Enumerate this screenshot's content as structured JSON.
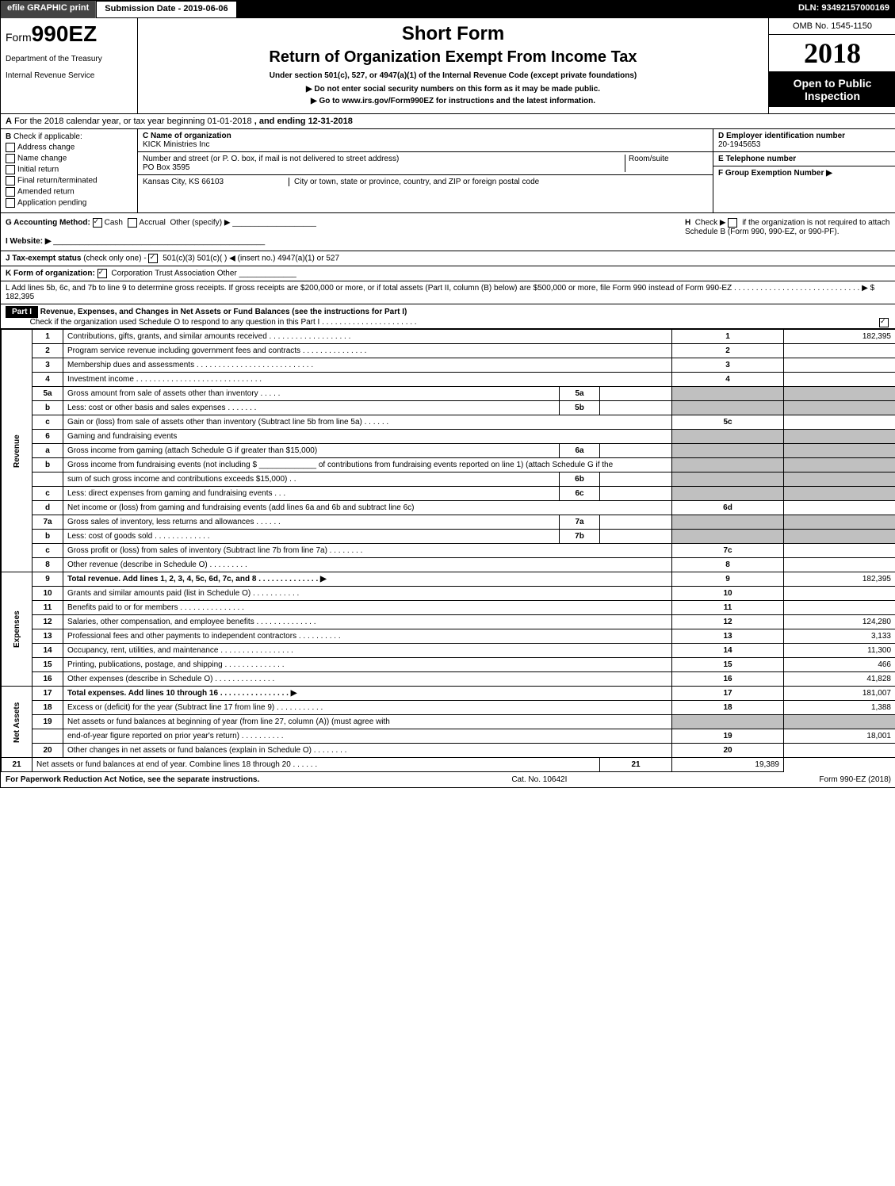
{
  "header": {
    "efile_label": "efile GRAPHIC print",
    "submission_label": "Submission Date - 2019-06-06",
    "dln": "DLN: 93492157000169"
  },
  "title": {
    "form_prefix": "Form",
    "form_number": "990EZ",
    "short_form": "Short Form",
    "return_of": "Return of Organization Exempt From Income Tax",
    "under_section": "Under section 501(c), 527, or 4947(a)(1) of the Internal Revenue Code (except private foundations)",
    "dept": "Department of the Treasury",
    "irs": "Internal Revenue Service",
    "do_not_enter": "▶ Do not enter social security numbers on this form as it may be made public.",
    "go_to": "▶ Go to www.irs.gov/Form990EZ for instructions and the latest information.",
    "omb": "OMB No. 1545-1150",
    "year": "2018",
    "open_public": "Open to Public Inspection"
  },
  "section_a": {
    "label_a": "A",
    "text": "For the 2018 calendar year, or tax year beginning 01-01-2018",
    "ending": ", and ending 12-31-2018"
  },
  "section_b": {
    "label": "B",
    "check_if": "Check if applicable:",
    "options": [
      "Address change",
      "Name change",
      "Initial return",
      "Final return/terminated",
      "Amended return",
      "Application pending"
    ]
  },
  "section_c": {
    "name_label": "C Name of organization",
    "name_value": "KICK Ministries Inc",
    "street_label": "Number and street (or P. O. box, if mail is not delivered to street address)",
    "street_value": "PO Box 3595",
    "room_label": "Room/suite",
    "city_state_hint": "City or town, state or province, country, and ZIP or foreign postal code",
    "city_value": "Kansas City, KS  66103"
  },
  "section_d": {
    "ein_label": "D Employer identification number",
    "ein_value": "20-1945653",
    "phone_label": "E Telephone number",
    "group_label": "F Group Exemption Number   ▶"
  },
  "section_g": {
    "accounting": "G Accounting Method:",
    "cash": "Cash",
    "accrual": "Accrual",
    "other": "Other (specify) ▶",
    "website": "I Website: ▶",
    "h_label": "H",
    "h_check": "Check ▶",
    "h_text": "if the organization is not required to attach Schedule B (Form 990, 990-EZ, or 990-PF)."
  },
  "section_j": {
    "label": "J Tax-exempt status",
    "hint": "(check only one) -",
    "opts": "501(c)(3)   501(c)(  ) ◀ (insert no.)   4947(a)(1) or   527"
  },
  "section_k": {
    "label": "K Form of organization:",
    "opts": "Corporation   Trust   Association   Other"
  },
  "section_l": {
    "text": "L Add lines 5b, 6c, and 7b to line 9 to determine gross receipts. If gross receipts are $200,000 or more, or if total assets (Part II, column (B) below) are $500,000 or more, file Form 990 instead of Form 990-EZ  . . . . . . . . . . . . . . . . . . . . . . . . . . . . .  ▶ $ 182,395"
  },
  "part1": {
    "header": "Part I",
    "title": "Revenue, Expenses, and Changes in Net Assets or Fund Balances (see the instructions for Part I)",
    "check_o": "Check if the organization used Schedule O to respond to any question in this Part I . . . . . . . . . . . . . . . . . . . . . ."
  },
  "sections": {
    "revenue": "Revenue",
    "expenses": "Expenses",
    "net_assets": "Net Assets"
  },
  "lines": [
    {
      "num": "1",
      "desc": "Contributions, gifts, grants, and similar amounts received  . . . . . . . . . . . . . . . . . . .",
      "box": "1",
      "val": "182,395"
    },
    {
      "num": "2",
      "desc": "Program service revenue including government fees and contracts  . . . . . . . . . . . . . . .",
      "box": "2",
      "val": ""
    },
    {
      "num": "3",
      "desc": "Membership dues and assessments  . . . . . . . . . . . . . . . . . . . . . . . . . . .",
      "box": "3",
      "val": ""
    },
    {
      "num": "4",
      "desc": "Investment income  . . . . . . . . . . . . . . . . . . . . . . . . . . . . .",
      "box": "4",
      "val": ""
    },
    {
      "num": "5a",
      "desc": "Gross amount from sale of assets other than inventory  . . . . .",
      "sub": "5a",
      "subval": ""
    },
    {
      "num": "b",
      "desc": "Less: cost or other basis and sales expenses  . . . . . . .",
      "sub": "5b",
      "subval": ""
    },
    {
      "num": "c",
      "desc": "Gain or (loss) from sale of assets other than inventory (Subtract line 5b from line 5a)          .  .  .  .  .  .",
      "box": "5c",
      "val": ""
    },
    {
      "num": "6",
      "desc": "Gaming and fundraising events"
    },
    {
      "num": "a",
      "desc": "Gross income from gaming (attach Schedule G if greater than $15,000)",
      "sub": "6a",
      "subval": ""
    },
    {
      "num": "b",
      "desc": "Gross income from fundraising events (not including $ _____________ of contributions from fundraising events reported on line 1) (attach Schedule G if the"
    },
    {
      "num": "",
      "desc": "sum of such gross income and contributions exceeds $15,000)      .  .",
      "sub": "6b",
      "subval": ""
    },
    {
      "num": "c",
      "desc": "Less: direct expenses from gaming and fundraising events      .  .  .",
      "sub": "6c",
      "subval": ""
    },
    {
      "num": "d",
      "desc": "Net income or (loss) from gaming and fundraising events (add lines 6a and 6b and subtract line 6c)",
      "box": "6d",
      "val": ""
    },
    {
      "num": "7a",
      "desc": "Gross sales of inventory, less returns and allowances          .  .  .  .  .  .",
      "sub": "7a",
      "subval": ""
    },
    {
      "num": "b",
      "desc": "Less: cost of goods sold                          .  .  .  .  .  .  .  .  .  .  .  .  .",
      "sub": "7b",
      "subval": ""
    },
    {
      "num": "c",
      "desc": "Gross profit or (loss) from sales of inventory (Subtract line 7b from line 7a)          .  .  .  .  .  .  .  .",
      "box": "7c",
      "val": ""
    },
    {
      "num": "8",
      "desc": "Other revenue (describe in Schedule O)                          .  .  .  .  .  .  .  .  .",
      "box": "8",
      "val": ""
    },
    {
      "num": "9",
      "desc": "Total revenue. Add lines 1, 2, 3, 4, 5c, 6d, 7c, and 8          .  .  .  .  .  .  .  .  .  .  .  .  .  .  ▶",
      "box": "9",
      "val": "182,395",
      "bold": true
    },
    {
      "num": "10",
      "desc": "Grants and similar amounts paid (list in Schedule O)          .  .  .  .  .  .  .  .  .  .  .",
      "box": "10",
      "val": ""
    },
    {
      "num": "11",
      "desc": "Benefits paid to or for members          .  .  .  .  .  .  .  .  .  .  .  .  .  .  .",
      "box": "11",
      "val": ""
    },
    {
      "num": "12",
      "desc": "Salaries, other compensation, and employee benefits          .  .  .  .  .  .  .  .  .  .  .  .  .  .",
      "box": "12",
      "val": "124,280"
    },
    {
      "num": "13",
      "desc": "Professional fees and other payments to independent contractors          .  .  .  .  .  .  .  .  .  .",
      "box": "13",
      "val": "3,133"
    },
    {
      "num": "14",
      "desc": "Occupancy, rent, utilities, and maintenance          .  .  .  .  .  .  .  .  .  .  .  .  .  .  .  .  .",
      "box": "14",
      "val": "11,300"
    },
    {
      "num": "15",
      "desc": "Printing, publications, postage, and shipping          .  .  .  .  .  .  .  .  .  .  .  .  .  .",
      "box": "15",
      "val": "466"
    },
    {
      "num": "16",
      "desc": "Other expenses (describe in Schedule O)          .  .  .  .  .  .  .  .  .  .  .  .  .  .",
      "box": "16",
      "val": "41,828"
    },
    {
      "num": "17",
      "desc": "Total expenses. Add lines 10 through 16          .  .  .  .  .  .  .  .  .  .  .  .  .  .  .  .  ▶",
      "box": "17",
      "val": "181,007",
      "bold": true
    },
    {
      "num": "18",
      "desc": "Excess or (deficit) for the year (Subtract line 17 from line 9)          .  .  .  .  .  .  .  .  .  .  .",
      "box": "18",
      "val": "1,388"
    },
    {
      "num": "19",
      "desc": "Net assets or fund balances at beginning of year (from line 27, column (A)) (must agree with"
    },
    {
      "num": "",
      "desc": "end-of-year figure reported on prior year's return)          .  .  .  .  .  .  .  .  .  .",
      "box": "19",
      "val": "18,001"
    },
    {
      "num": "20",
      "desc": "Other changes in net assets or fund balances (explain in Schedule O)          .  .  .  .  .  .  .  .",
      "box": "20",
      "val": ""
    },
    {
      "num": "21",
      "desc": "Net assets or fund balances at end of year. Combine lines 18 through 20          .  .  .  .  .  .",
      "box": "21",
      "val": "19,389"
    }
  ],
  "footer": {
    "paperwork": "For Paperwork Reduction Act Notice, see the separate instructions.",
    "cat": "Cat. No. 10642I",
    "form": "Form 990-EZ (2018)"
  }
}
